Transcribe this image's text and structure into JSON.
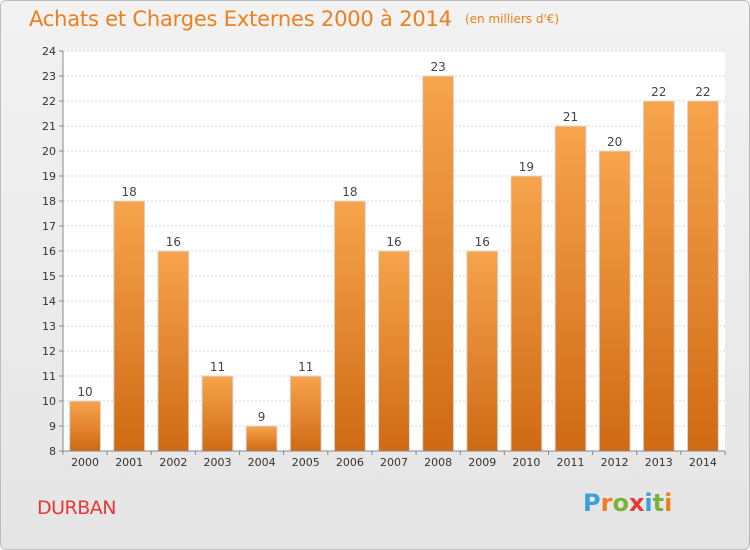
{
  "header": {
    "title": "Achats et Charges Externes 2000 à 2014",
    "unit": "(en milliers d'€)"
  },
  "footer": {
    "location": "DURBAN",
    "logo": {
      "text": "Proxiti",
      "letter_colors": [
        "#3aa0d8",
        "#ef7f1d",
        "#7bb33a",
        "#e8363b",
        "#3aa0d8",
        "#7bb33a",
        "#ef7f1d"
      ]
    }
  },
  "colors": {
    "bar_top": "#f7a44c",
    "bar_bottom": "#cf6a14",
    "bar_stroke": "#d9d9d9",
    "title": "#ef7f1d",
    "location": "#e8363b",
    "plot_bg": "#ffffff"
  },
  "chart_data": {
    "type": "bar",
    "categories": [
      "2000",
      "2001",
      "2002",
      "2003",
      "2004",
      "2005",
      "2006",
      "2007",
      "2008",
      "2009",
      "2010",
      "2011",
      "2012",
      "2013",
      "2014"
    ],
    "values": [
      10,
      18,
      16,
      11,
      9,
      11,
      18,
      16,
      23,
      16,
      19,
      21,
      20,
      22,
      22
    ],
    "ylim": [
      8,
      24
    ],
    "yticks": [
      8,
      9,
      10,
      11,
      12,
      13,
      14,
      15,
      16,
      17,
      18,
      19,
      20,
      21,
      22,
      23,
      24
    ],
    "grid": true,
    "data_labels": true
  }
}
